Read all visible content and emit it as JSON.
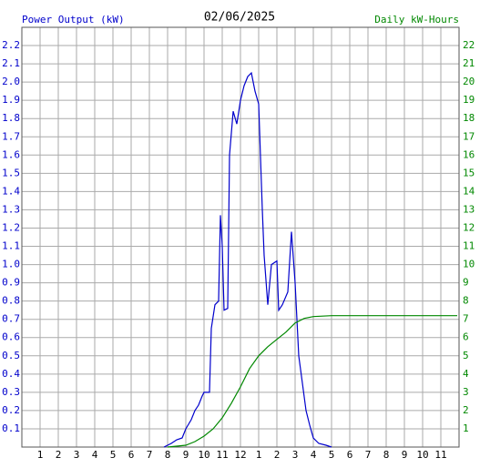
{
  "chart_data": {
    "type": "line",
    "title": "02/06/2025",
    "y_label": "Power Output (kW)",
    "y2_label": "Daily kW-Hours",
    "grid": true,
    "xlim": [
      0,
      24
    ],
    "xticks": [
      1,
      2,
      3,
      4,
      5,
      6,
      7,
      8,
      9,
      10,
      11,
      12,
      {
        "value": 13,
        "label": "1"
      },
      {
        "value": 14,
        "label": "2"
      },
      {
        "value": 15,
        "label": "3"
      },
      {
        "value": 16,
        "label": "4"
      },
      {
        "value": 17,
        "label": "5"
      },
      {
        "value": 18,
        "label": "6"
      },
      {
        "value": 19,
        "label": "7"
      },
      {
        "value": 20,
        "label": "8"
      },
      {
        "value": 21,
        "label": "9"
      },
      {
        "value": 22,
        "label": "10"
      },
      {
        "value": 23,
        "label": "11"
      }
    ],
    "ylim": [
      0,
      2.3
    ],
    "yticks": [
      0.1,
      0.2,
      0.3,
      0.4,
      0.5,
      0.6,
      0.7,
      0.8,
      0.9,
      {
        "value": 1,
        "label": "1.0"
      },
      1.1,
      1.2,
      1.3,
      1.4,
      1.5,
      1.6,
      1.7,
      1.8,
      1.9,
      {
        "value": 2,
        "label": "2.0"
      },
      2.1,
      2.2
    ],
    "y2lim": [
      0,
      23
    ],
    "y2ticks": [
      1,
      2,
      3,
      4,
      5,
      6,
      7,
      8,
      9,
      10,
      11,
      12,
      13,
      14,
      15,
      16,
      17,
      18,
      19,
      20,
      21,
      22
    ],
    "series": [
      {
        "color": "#0000cc",
        "x": [
          7.8,
          8.2,
          8.5,
          8.8,
          9.0,
          9.3,
          9.5,
          9.7,
          9.9,
          10.0,
          10.3,
          10.4,
          10.6,
          10.8,
          10.9,
          11.0,
          11.1,
          11.3,
          11.4,
          11.6,
          11.8,
          12.0,
          12.2,
          12.4,
          12.6,
          12.8,
          13.0,
          13.2,
          13.3,
          13.5,
          13.7,
          14.0,
          14.1,
          14.3,
          14.6,
          14.8,
          15.0,
          15.2,
          15.4,
          15.6,
          15.8,
          16.0,
          16.3,
          16.7,
          17.0
        ],
        "values": [
          0,
          0.02,
          0.04,
          0.05,
          0.1,
          0.15,
          0.2,
          0.23,
          0.28,
          0.3,
          0.3,
          0.65,
          0.78,
          0.8,
          1.27,
          1.1,
          0.75,
          0.76,
          1.6,
          1.84,
          1.77,
          1.9,
          1.98,
          2.03,
          2.05,
          1.95,
          1.88,
          1.3,
          1.05,
          0.78,
          1.0,
          1.02,
          0.75,
          0.78,
          0.85,
          1.18,
          0.9,
          0.5,
          0.35,
          0.2,
          0.12,
          0.05,
          0.02,
          0.01,
          0
        ]
      },
      {
        "color": "#008800",
        "axis": "y2",
        "x": [
          8,
          9,
          9.5,
          10,
          10.5,
          11,
          11.5,
          12,
          12.5,
          13,
          13.5,
          14,
          14.5,
          15,
          15.5,
          16,
          17,
          23.9
        ],
        "values": [
          0,
          0.1,
          0.3,
          0.6,
          1.0,
          1.6,
          2.4,
          3.3,
          4.3,
          5.0,
          5.5,
          5.9,
          6.3,
          6.8,
          7.05,
          7.15,
          7.2,
          7.2
        ]
      }
    ]
  }
}
